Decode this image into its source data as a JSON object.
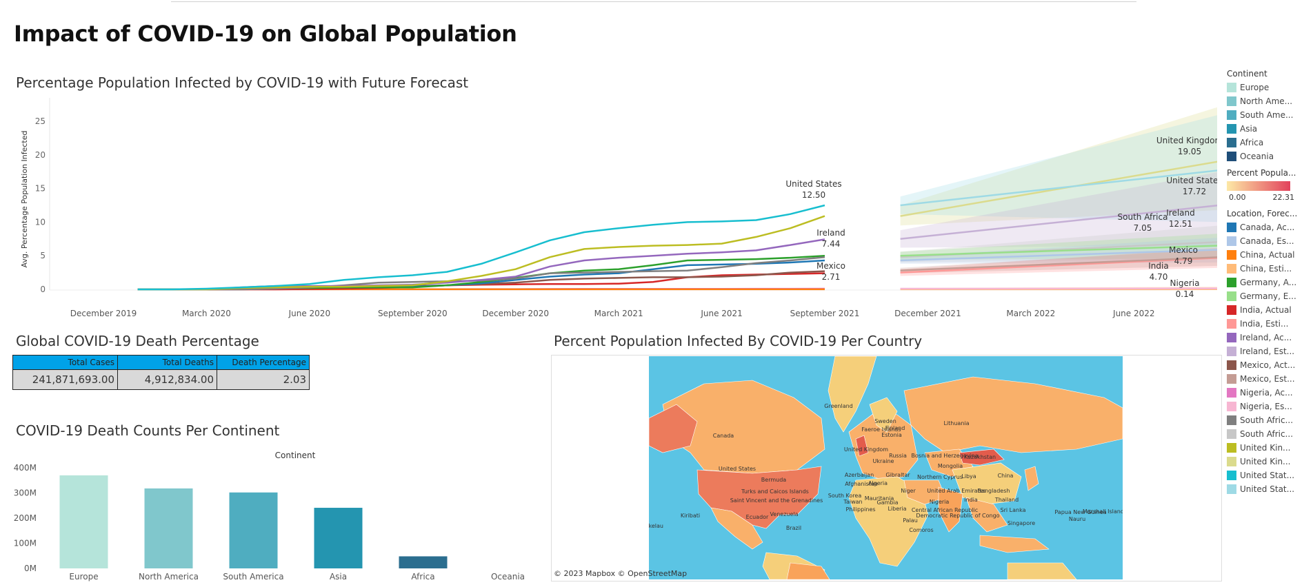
{
  "dashboard_title": "Impact of COVID-19 on Global Population",
  "line_section_title": "Percentage Population Infected by COVID-19 with Future Forecast",
  "table_section_title": "Global COVID-19 Death Percentage",
  "bar_section_title": "COVID-19 Death Counts Per Continent",
  "map_section_title": "Percent Population Infected By COVID-19 Per Country",
  "death_table": {
    "headers": [
      "Total Cases",
      "Total Deaths",
      "Death Percentage"
    ],
    "values": [
      "241,871,693.00",
      "4,912,834.00",
      "2.03"
    ]
  },
  "legend_continent": {
    "title": "Continent",
    "items": [
      {
        "label": "Europe",
        "color": "#b5e4da"
      },
      {
        "label": "North Ame...",
        "color": "#80c7cc"
      },
      {
        "label": "South Ame...",
        "color": "#4fadc0"
      },
      {
        "label": "Asia",
        "color": "#2495b0"
      },
      {
        "label": "Africa",
        "color": "#2b6e8f"
      },
      {
        "label": "Oceania",
        "color": "#1f4e79"
      }
    ]
  },
  "legend_percent": {
    "title": "Percent Popula...",
    "min": "0.00",
    "max": "22.31",
    "color_low": "#fde9a6",
    "color_high": "#e2425c"
  },
  "legend_location": {
    "title": "Location, Forec...",
    "items": [
      {
        "label": "Canada, Ac...",
        "color": "#1f77b4"
      },
      {
        "label": "Canada, Es...",
        "color": "#aec7e8"
      },
      {
        "label": "China, Actual",
        "color": "#ff7f0e"
      },
      {
        "label": "China, Esti...",
        "color": "#ffbb78"
      },
      {
        "label": "Germany, A...",
        "color": "#2ca02c"
      },
      {
        "label": "Germany, E...",
        "color": "#98df8a"
      },
      {
        "label": "India, Actual",
        "color": "#d62728"
      },
      {
        "label": "India, Esti...",
        "color": "#ff9896"
      },
      {
        "label": "Ireland, Ac...",
        "color": "#9467bd"
      },
      {
        "label": "Ireland, Est...",
        "color": "#c5b0d5"
      },
      {
        "label": "Mexico, Act...",
        "color": "#8c564b"
      },
      {
        "label": "Mexico, Est...",
        "color": "#c49c94"
      },
      {
        "label": "Nigeria, Ac...",
        "color": "#e377c2"
      },
      {
        "label": "Nigeria, Es...",
        "color": "#f7b6d2"
      },
      {
        "label": "South Afric...",
        "color": "#7f7f7f"
      },
      {
        "label": "South Afric...",
        "color": "#c7c7c7"
      },
      {
        "label": "United Kin...",
        "color": "#bcbd22"
      },
      {
        "label": "United Kin...",
        "color": "#dbdb8d"
      },
      {
        "label": "United Stat...",
        "color": "#17becf"
      },
      {
        "label": "United Stat...",
        "color": "#9edae5"
      }
    ]
  },
  "map": {
    "attribution": "© 2023 Mapbox  © OpenStreetMap",
    "ocean_color": "#5bc4e4",
    "labels": [
      "Greenland",
      "Canada",
      "United States",
      "Bermuda",
      "Turks and Caicos Islands",
      "Saint Vincent and the Grenadines",
      "Venezuela",
      "Ecuador",
      "Brazil",
      "Faeroe Islands",
      "United Kingdom",
      "Sweden",
      "Finland",
      "Estonia",
      "Lithuania",
      "Russia",
      "Ukraine",
      "Bosnia and Herzegovina",
      "Kazakhstan",
      "Mongolia",
      "Azerbaijan",
      "Gibraltar",
      "Northern Cyprus",
      "Afghanistan",
      "Algeria",
      "Libya",
      "China",
      "South Korea",
      "Mauritania",
      "Niger",
      "United Arab Emirates",
      "Bangladesh",
      "Taiwan",
      "Gambia",
      "Nigeria",
      "India",
      "Thailand",
      "Philippines",
      "Liberia",
      "Central African Republic",
      "Sri Lanka",
      "Palau",
      "Democratic Republic of Congo",
      "Singapore",
      "Papua New Guinea",
      "Nauru",
      "Marshall Islands",
      "Comoros",
      "Kiribati",
      "Tokelau"
    ]
  },
  "chart_data": [
    {
      "type": "line",
      "title": "Percentage Population Infected by COVID-19 with Future Forecast",
      "ylabel": "Avg. Percentage Population Infected",
      "xlabel": "",
      "ylim": [
        0,
        28
      ],
      "yticks": [
        0,
        5,
        10,
        15,
        20,
        25
      ],
      "xticks": [
        "December 2019",
        "March 2020",
        "June 2020",
        "September 2020",
        "December 2020",
        "March 2021",
        "June 2021",
        "September 2021",
        "December 2021",
        "March 2022",
        "June 2022"
      ],
      "x_months_actual": [
        "2020-01",
        "2020-02",
        "2020-03",
        "2020-04",
        "2020-05",
        "2020-06",
        "2020-07",
        "2020-08",
        "2020-09",
        "2020-10",
        "2020-11",
        "2020-12",
        "2021-01",
        "2021-02",
        "2021-03",
        "2021-04",
        "2021-05",
        "2021-06",
        "2021-07",
        "2021-08",
        "2021-09"
      ],
      "series": [
        {
          "name": "United States, Actual",
          "color": "#17becf",
          "values": [
            0,
            0,
            0.1,
            0.3,
            0.5,
            0.8,
            1.4,
            1.8,
            2.1,
            2.6,
            3.8,
            5.5,
            7.3,
            8.5,
            9.1,
            9.6,
            10.0,
            10.1,
            10.3,
            11.2,
            12.5
          ]
        },
        {
          "name": "United Kingdom, Actual",
          "color": "#bcbd22",
          "values": [
            0,
            0,
            0,
            0.2,
            0.3,
            0.4,
            0.4,
            0.5,
            0.6,
            1.2,
            2.0,
            3.0,
            4.8,
            6.0,
            6.3,
            6.5,
            6.6,
            6.8,
            7.8,
            9.1,
            10.9
          ]
        },
        {
          "name": "Ireland, Actual",
          "color": "#9467bd",
          "values": [
            0,
            0,
            0,
            0.3,
            0.5,
            0.5,
            0.5,
            0.6,
            0.7,
            1.0,
            1.4,
            1.9,
            3.4,
            4.3,
            4.7,
            5.0,
            5.3,
            5.5,
            5.8,
            6.6,
            7.44
          ]
        },
        {
          "name": "South Africa, Actual",
          "color": "#7f7f7f",
          "values": [
            0,
            0,
            0,
            0,
            0.1,
            0.3,
            0.6,
            1.0,
            1.1,
            1.2,
            1.3,
            1.6,
            2.4,
            2.5,
            2.6,
            2.7,
            2.8,
            3.3,
            3.9,
            4.3,
            4.8
          ]
        },
        {
          "name": "Germany, Actual",
          "color": "#2ca02c",
          "values": [
            0,
            0,
            0,
            0.2,
            0.2,
            0.2,
            0.3,
            0.3,
            0.3,
            0.6,
            1.1,
            1.7,
            2.4,
            2.8,
            3.0,
            3.6,
            4.3,
            4.4,
            4.5,
            4.7,
            5.0
          ]
        },
        {
          "name": "Canada, Actual",
          "color": "#1f77b4",
          "values": [
            0,
            0,
            0,
            0.1,
            0.2,
            0.3,
            0.3,
            0.3,
            0.4,
            0.6,
            0.9,
            1.4,
            1.9,
            2.2,
            2.4,
            3.0,
            3.6,
            3.7,
            3.8,
            4.0,
            4.3
          ]
        },
        {
          "name": "Mexico, Actual",
          "color": "#8c564b",
          "values": [
            0,
            0,
            0,
            0,
            0.1,
            0.2,
            0.3,
            0.4,
            0.5,
            0.6,
            0.8,
            1.0,
            1.4,
            1.6,
            1.7,
            1.8,
            1.8,
            1.9,
            2.1,
            2.5,
            2.71
          ]
        },
        {
          "name": "India, Actual",
          "color": "#d62728",
          "values": [
            0,
            0,
            0,
            0,
            0,
            0.05,
            0.1,
            0.2,
            0.4,
            0.6,
            0.7,
            0.75,
            0.8,
            0.8,
            0.85,
            1.1,
            1.8,
            2.1,
            2.2,
            2.3,
            2.4
          ]
        },
        {
          "name": "China, Actual",
          "color": "#ff7f0e",
          "values": [
            0,
            0,
            0.01,
            0.01,
            0.01,
            0.01,
            0.01,
            0.01,
            0.01,
            0.01,
            0.01,
            0.01,
            0.01,
            0.01,
            0.01,
            0.01,
            0.01,
            0.01,
            0.01,
            0.01,
            0.01
          ]
        },
        {
          "name": "Nigeria, Actual",
          "color": "#e377c2",
          "values": [
            0,
            0,
            0,
            0,
            0,
            0.01,
            0.02,
            0.03,
            0.03,
            0.03,
            0.04,
            0.04,
            0.06,
            0.07,
            0.08,
            0.08,
            0.08,
            0.08,
            0.09,
            0.09,
            0.1
          ]
        }
      ],
      "forecast": [
        {
          "name": "United Kingdom, Estimate",
          "color": "#dbdb8d",
          "start": 10.9,
          "end": 19.05,
          "band_low": [
            9.5,
            11.8
          ],
          "band_high": [
            12.5,
            27.2
          ]
        },
        {
          "name": "United States, Estimate",
          "color": "#9edae5",
          "start": 12.5,
          "end": 17.72,
          "band_low": [
            11.2,
            10.0
          ],
          "band_high": [
            13.8,
            26.0
          ]
        },
        {
          "name": "Ireland, Estimate",
          "color": "#c5b0d5",
          "start": 7.5,
          "end": 12.51,
          "band_low": [
            6.2,
            6.5
          ],
          "band_high": [
            8.8,
            17.5
          ]
        },
        {
          "name": "South Africa, Estimate",
          "color": "#c7c7c7",
          "start": 4.8,
          "end": 7.05,
          "band_low": [
            4.0,
            4.5
          ],
          "band_high": [
            5.6,
            9.5
          ]
        },
        {
          "name": "Germany, Estimate",
          "color": "#98df8a",
          "start": 5.0,
          "end": 6.5,
          "band_low": [
            4.4,
            4.6
          ],
          "band_high": [
            5.6,
            8.3
          ]
        },
        {
          "name": "Canada, Estimate",
          "color": "#aec7e8",
          "start": 4.3,
          "end": 5.9,
          "band_low": [
            3.8,
            4.0
          ],
          "band_high": [
            4.9,
            7.7
          ]
        },
        {
          "name": "India, Estimate",
          "color": "#ff9896",
          "start": 2.5,
          "end": 4.7,
          "band_low": [
            2.0,
            3.2
          ],
          "band_high": [
            3.0,
            6.2
          ]
        },
        {
          "name": "Mexico, Estimate",
          "color": "#c49c94",
          "start": 2.8,
          "end": 4.79,
          "band_low": [
            2.4,
            3.5
          ],
          "band_high": [
            3.2,
            6.0
          ]
        },
        {
          "name": "China, Estimate",
          "color": "#ffbb78",
          "start": 0.01,
          "end": 0.02,
          "band_low": [
            0,
            0
          ],
          "band_high": [
            0.2,
            0.4
          ]
        },
        {
          "name": "Nigeria, Estimate",
          "color": "#f7b6d2",
          "start": 0.1,
          "end": 0.14,
          "band_low": [
            0,
            0
          ],
          "band_high": [
            0.2,
            0.3
          ]
        }
      ],
      "annotations": [
        {
          "country": "United States",
          "value": "12.50"
        },
        {
          "country": "Ireland",
          "value": "7.44"
        },
        {
          "country": "Mexico",
          "value": "2.71"
        },
        {
          "country": "United Kingdom",
          "value": "19.05"
        },
        {
          "country": "United States",
          "value": "17.72"
        },
        {
          "country": "Ireland",
          "value": "12.51"
        },
        {
          "country": "South Africa",
          "value": "7.05"
        },
        {
          "country": "Mexico",
          "value": "4.79"
        },
        {
          "country": "India",
          "value": "4.70"
        },
        {
          "country": "Nigeria",
          "value": "0.14"
        }
      ]
    },
    {
      "type": "bar",
      "title": "COVID-19 Death Counts Per Continent",
      "header": "Continent",
      "categories": [
        "Europe",
        "North America",
        "South America",
        "Asia",
        "Africa",
        "Oceania"
      ],
      "values": [
        370000000,
        318000000,
        302000000,
        241000000,
        48000000,
        0
      ],
      "colors": [
        "#b5e4da",
        "#80c7cc",
        "#4fadc0",
        "#2495b0",
        "#2b6e8f",
        "#1f4e79"
      ],
      "ylim": [
        0,
        430000000
      ],
      "yticks": [
        0,
        100000000,
        200000000,
        300000000,
        400000000
      ],
      "ytick_labels": [
        "0M",
        "100M",
        "200M",
        "300M",
        "400M"
      ]
    }
  ]
}
